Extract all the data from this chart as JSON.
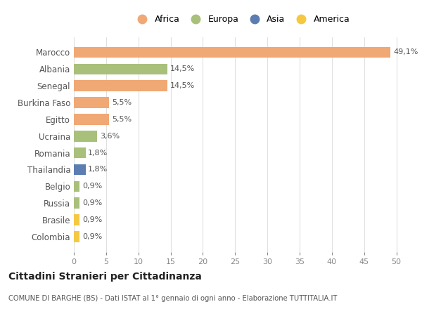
{
  "categories": [
    "Marocco",
    "Albania",
    "Senegal",
    "Burkina Faso",
    "Egitto",
    "Ucraina",
    "Romania",
    "Thailandia",
    "Belgio",
    "Russia",
    "Brasile",
    "Colombia"
  ],
  "values": [
    49.1,
    14.5,
    14.5,
    5.5,
    5.5,
    3.6,
    1.8,
    1.8,
    0.9,
    0.9,
    0.9,
    0.9
  ],
  "labels": [
    "49,1%",
    "14,5%",
    "14,5%",
    "5,5%",
    "5,5%",
    "3,6%",
    "1,8%",
    "1,8%",
    "0,9%",
    "0,9%",
    "0,9%",
    "0,9%"
  ],
  "colors": [
    "#F0A875",
    "#A8C07A",
    "#F0A875",
    "#F0A875",
    "#F0A875",
    "#A8C07A",
    "#A8C07A",
    "#5B7DB1",
    "#A8C07A",
    "#A8C07A",
    "#F5C842",
    "#F5C842"
  ],
  "continent_colors": {
    "Africa": "#F0A875",
    "Europa": "#A8C07A",
    "Asia": "#5B7DB1",
    "America": "#F5C842"
  },
  "title": "Cittadini Stranieri per Cittadinanza",
  "subtitle": "COMUNE DI BARGHE (BS) - Dati ISTAT al 1° gennaio di ogni anno - Elaborazione TUTTITALIA.IT",
  "xlabel_ticks": [
    0,
    5,
    10,
    15,
    20,
    25,
    30,
    35,
    40,
    45,
    50
  ],
  "xlim": [
    0,
    52
  ],
  "background_color": "#ffffff",
  "grid_color": "#e0e0e0",
  "bar_height": 0.65
}
